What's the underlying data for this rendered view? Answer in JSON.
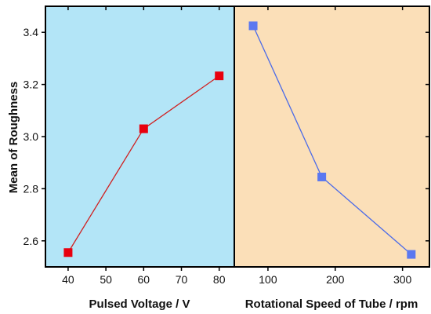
{
  "chart_data": {
    "type": "line",
    "ylabel": "Mean of Roughness",
    "ylim": [
      2.5,
      3.5
    ],
    "yticks": [
      2.6,
      2.8,
      3.0,
      3.2,
      3.4
    ],
    "ytick_labels": [
      "2.6",
      "2.8",
      "3.0",
      "3.2",
      "3.4"
    ],
    "grid": false,
    "panels": [
      {
        "xlabel": "Pulsed Voltage / V",
        "xlim": [
          34,
          84
        ],
        "xticks": [
          40,
          50,
          60,
          70,
          80
        ],
        "xtick_labels": [
          "40",
          "50",
          "60",
          "70",
          "80"
        ],
        "background": "#b3e5f7",
        "series": [
          {
            "x": [
              40,
              60,
              80
            ],
            "y": [
              2.555,
              3.03,
              3.233
            ],
            "color": "#e8000e",
            "line_color": "#d02020",
            "marker": "square"
          }
        ]
      },
      {
        "xlabel": "Rotational Speed of Tube / rpm",
        "xlim": [
          50,
          340
        ],
        "xticks": [
          100,
          200,
          300
        ],
        "xtick_labels": [
          "100",
          "200",
          "300"
        ],
        "background": "#fbdfb8",
        "series": [
          {
            "x": [
              78,
              180,
              313
            ],
            "y": [
              3.425,
              2.845,
              2.548
            ],
            "color": "#5b78f0",
            "line_color": "#4a6ae8",
            "marker": "square"
          }
        ]
      }
    ]
  }
}
